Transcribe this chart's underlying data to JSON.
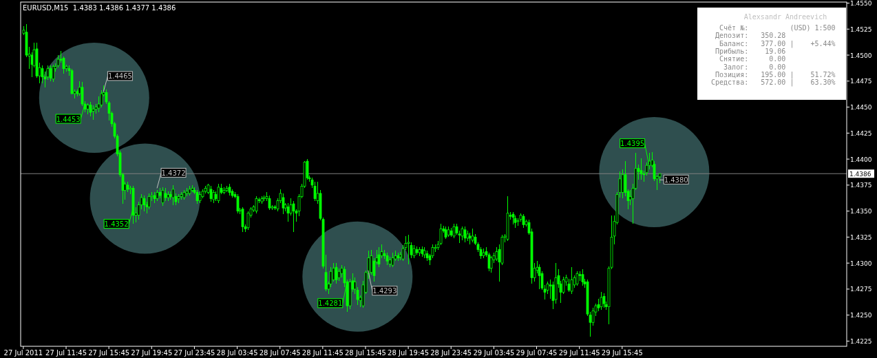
{
  "chart_data": [
    {
      "type": "candlestick",
      "title": "EURUSD,M15  1.4383 1.4386 1.4377 1.4386",
      "color": "#00ff00",
      "xlim": [
        "2011-07-27T07:30",
        "2011-07-30T12:45"
      ],
      "ylim": [
        1.422,
        1.4551
      ],
      "yticks": [
        {
          "value": 1.4225,
          "label": "1.4225"
        },
        {
          "value": 1.425,
          "label": "1.4250"
        },
        {
          "value": 1.4275,
          "label": "1.4275"
        },
        {
          "value": 1.43,
          "label": "1.4300"
        },
        {
          "value": 1.4325,
          "label": "1.4325"
        },
        {
          "value": 1.435,
          "label": "1.4350"
        },
        {
          "value": 1.4375,
          "label": "1.4375"
        },
        {
          "value": 1.44,
          "label": "1.4400"
        },
        {
          "value": 1.4425,
          "label": "1.4425"
        },
        {
          "value": 1.445,
          "label": "1.4450"
        },
        {
          "value": 1.4475,
          "label": "1.4475"
        },
        {
          "value": 1.45,
          "label": "1.4500"
        },
        {
          "value": 1.4525,
          "label": "1.4525"
        },
        {
          "value": 1.455,
          "label": "1.4550"
        }
      ],
      "xticks": [
        {
          "value": "2011-07-27T07:45",
          "label": "27 Jul 2011"
        },
        {
          "value": "2011-07-27T11:45",
          "label": "27 Jul 11:45"
        },
        {
          "value": "2011-07-27T15:45",
          "label": "27 Jul 15:45"
        },
        {
          "value": "2011-07-27T19:45",
          "label": "27 Jul 19:45"
        },
        {
          "value": "2011-07-27T23:45",
          "label": "27 Jul 23:45"
        },
        {
          "value": "2011-07-28T03:45",
          "label": "28 Jul 03:45"
        },
        {
          "value": "2011-07-28T07:45",
          "label": "28 Jul 07:45"
        },
        {
          "value": "2011-07-28T11:45",
          "label": "28 Jul 11:45"
        },
        {
          "value": "2011-07-28T15:45",
          "label": "28 Jul 15:45"
        },
        {
          "value": "2011-07-28T19:45",
          "label": "28 Jul 19:45"
        },
        {
          "value": "2011-07-28T23:45",
          "label": "28 Jul 23:45"
        },
        {
          "value": "2011-07-29T03:45",
          "label": "29 Jul 03:45"
        },
        {
          "value": "2011-07-29T07:45",
          "label": "29 Jul 07:45"
        },
        {
          "value": "2011-07-29T11:45",
          "label": "29 Jul 11:45"
        },
        {
          "value": "2011-07-29T15:45",
          "label": "29 Jul 15:45"
        }
      ],
      "ref_lines": [
        {
          "axis": "y",
          "value": 1.4386,
          "label": "1.4386",
          "color": "#808080"
        }
      ],
      "annotations": [
        {
          "text": "1.4453",
          "x": "2011-07-27T13:30",
          "y": 1.4453
        },
        {
          "text": "1.4465",
          "x": "2011-07-27T15:15",
          "y": 1.4465
        },
        {
          "text": "1.4352",
          "x": "2011-07-27T18:00",
          "y": 1.4352
        },
        {
          "text": "1.4372",
          "x": "2011-07-27T20:15",
          "y": 1.4372
        },
        {
          "text": "1.4281",
          "x": "2011-07-28T14:00",
          "y": 1.4281
        },
        {
          "text": "1.4293",
          "x": "2011-07-28T16:00",
          "y": 1.4293
        },
        {
          "text": "1.4395",
          "x": "2011-07-29T18:15",
          "y": 1.4395
        },
        {
          "text": "1.4380",
          "x": "2011-07-29T19:15",
          "y": 1.438
        }
      ],
      "x": [
        "2011-07-27T07:45",
        "2011-07-27T08:00",
        "2011-07-27T08:15",
        "2011-07-27T08:30",
        "2011-07-27T08:45",
        "2011-07-27T09:00",
        "2011-07-27T09:15",
        "2011-07-27T09:30",
        "2011-07-27T09:45",
        "2011-07-27T10:00",
        "2011-07-27T10:15",
        "2011-07-27T10:30",
        "2011-07-27T10:45",
        "2011-07-27T11:00",
        "2011-07-27T11:15",
        "2011-07-27T11:30",
        "2011-07-27T11:45",
        "2011-07-27T12:00",
        "2011-07-27T12:15",
        "2011-07-27T12:30",
        "2011-07-27T12:45",
        "2011-07-27T13:00",
        "2011-07-27T13:15",
        "2011-07-27T13:30",
        "2011-07-27T13:45",
        "2011-07-27T14:00",
        "2011-07-27T14:15",
        "2011-07-27T14:30",
        "2011-07-27T14:45",
        "2011-07-27T15:00",
        "2011-07-27T15:15",
        "2011-07-27T15:30",
        "2011-07-27T15:45",
        "2011-07-27T16:00",
        "2011-07-27T16:15",
        "2011-07-27T16:30",
        "2011-07-27T16:45",
        "2011-07-27T17:00",
        "2011-07-27T17:15",
        "2011-07-27T17:30",
        "2011-07-27T17:45",
        "2011-07-27T18:00",
        "2011-07-27T18:15",
        "2011-07-27T18:30",
        "2011-07-27T18:45",
        "2011-07-27T19:00",
        "2011-07-27T19:15",
        "2011-07-27T19:30",
        "2011-07-27T19:45",
        "2011-07-27T20:00",
        "2011-07-27T20:15",
        "2011-07-27T20:30",
        "2011-07-27T20:45",
        "2011-07-27T21:00",
        "2011-07-27T21:15",
        "2011-07-27T21:30",
        "2011-07-27T21:45",
        "2011-07-27T22:00",
        "2011-07-27T22:15",
        "2011-07-27T22:30",
        "2011-07-27T22:45",
        "2011-07-27T23:00",
        "2011-07-27T23:15",
        "2011-07-27T23:30",
        "2011-07-27T23:45",
        "2011-07-28T00:00",
        "2011-07-28T00:15",
        "2011-07-28T00:30",
        "2011-07-28T00:45",
        "2011-07-28T01:00",
        "2011-07-28T01:15",
        "2011-07-28T01:30",
        "2011-07-28T01:45",
        "2011-07-28T02:00",
        "2011-07-28T02:15",
        "2011-07-28T02:30",
        "2011-07-28T02:45",
        "2011-07-28T03:00",
        "2011-07-28T03:15",
        "2011-07-28T03:30",
        "2011-07-28T03:45",
        "2011-07-28T04:00",
        "2011-07-28T04:15",
        "2011-07-28T04:30",
        "2011-07-28T04:45",
        "2011-07-28T05:00",
        "2011-07-28T05:15",
        "2011-07-28T05:30",
        "2011-07-28T05:45",
        "2011-07-28T06:00",
        "2011-07-28T06:15",
        "2011-07-28T06:30",
        "2011-07-28T06:45",
        "2011-07-28T07:00",
        "2011-07-28T07:15",
        "2011-07-28T07:30",
        "2011-07-28T07:45",
        "2011-07-28T08:00",
        "2011-07-28T08:15",
        "2011-07-28T08:30",
        "2011-07-28T08:45",
        "2011-07-28T09:00",
        "2011-07-28T09:15",
        "2011-07-28T09:30",
        "2011-07-28T09:45",
        "2011-07-28T10:00",
        "2011-07-28T10:15",
        "2011-07-28T10:30",
        "2011-07-28T10:45",
        "2011-07-28T11:00",
        "2011-07-28T11:15",
        "2011-07-28T11:30",
        "2011-07-28T11:45",
        "2011-07-28T12:00",
        "2011-07-28T12:15",
        "2011-07-28T12:30",
        "2011-07-28T12:45",
        "2011-07-28T13:00",
        "2011-07-28T13:15",
        "2011-07-28T13:30",
        "2011-07-28T13:45",
        "2011-07-28T14:00",
        "2011-07-28T14:15",
        "2011-07-28T14:30",
        "2011-07-28T14:45",
        "2011-07-28T15:00",
        "2011-07-28T15:15",
        "2011-07-28T15:30",
        "2011-07-28T15:45",
        "2011-07-28T16:00",
        "2011-07-28T16:15",
        "2011-07-28T16:30",
        "2011-07-28T16:45",
        "2011-07-28T17:00",
        "2011-07-28T17:15",
        "2011-07-28T17:30",
        "2011-07-28T17:45",
        "2011-07-28T18:00",
        "2011-07-28T18:15",
        "2011-07-28T18:30",
        "2011-07-28T18:45",
        "2011-07-28T19:00",
        "2011-07-28T19:15",
        "2011-07-28T19:30",
        "2011-07-28T19:45",
        "2011-07-28T20:00",
        "2011-07-28T20:15",
        "2011-07-28T20:30",
        "2011-07-28T20:45",
        "2011-07-28T21:00",
        "2011-07-28T21:15",
        "2011-07-28T21:30",
        "2011-07-28T21:45",
        "2011-07-28T22:00",
        "2011-07-28T22:15",
        "2011-07-28T22:30",
        "2011-07-28T22:45",
        "2011-07-28T23:00",
        "2011-07-28T23:15",
        "2011-07-28T23:30",
        "2011-07-28T23:45",
        "2011-07-29T00:00",
        "2011-07-29T00:15",
        "2011-07-29T00:30",
        "2011-07-29T00:45",
        "2011-07-29T01:00",
        "2011-07-29T01:15",
        "2011-07-29T01:30",
        "2011-07-29T01:45",
        "2011-07-29T02:00",
        "2011-07-29T02:15",
        "2011-07-29T02:30",
        "2011-07-29T02:45",
        "2011-07-29T03:00",
        "2011-07-29T03:15",
        "2011-07-29T03:30",
        "2011-07-29T03:45",
        "2011-07-29T04:00",
        "2011-07-29T04:15",
        "2011-07-29T04:30",
        "2011-07-29T04:45",
        "2011-07-29T05:00",
        "2011-07-29T05:15",
        "2011-07-29T05:30",
        "2011-07-29T05:45",
        "2011-07-29T06:00",
        "2011-07-29T06:15",
        "2011-07-29T06:30",
        "2011-07-29T06:45",
        "2011-07-29T07:00",
        "2011-07-29T07:15",
        "2011-07-29T07:30",
        "2011-07-29T07:45",
        "2011-07-29T08:00",
        "2011-07-29T08:15",
        "2011-07-29T08:30",
        "2011-07-29T08:45",
        "2011-07-29T09:00",
        "2011-07-29T09:15",
        "2011-07-29T09:30",
        "2011-07-29T09:45",
        "2011-07-29T10:00",
        "2011-07-29T10:15",
        "2011-07-29T10:30",
        "2011-07-29T10:45",
        "2011-07-29T11:00",
        "2011-07-29T11:15",
        "2011-07-29T11:30",
        "2011-07-29T11:45",
        "2011-07-29T12:00",
        "2011-07-29T12:15",
        "2011-07-29T12:30",
        "2011-07-29T12:45",
        "2011-07-29T13:00",
        "2011-07-29T13:15",
        "2011-07-29T13:30",
        "2011-07-29T13:45",
        "2011-07-29T14:00",
        "2011-07-29T14:15",
        "2011-07-29T14:30",
        "2011-07-29T14:45",
        "2011-07-29T15:00",
        "2011-07-29T15:15",
        "2011-07-29T15:30",
        "2011-07-29T15:45",
        "2011-07-29T16:00",
        "2011-07-29T16:15",
        "2011-07-29T16:30",
        "2011-07-29T16:45",
        "2011-07-29T17:00",
        "2011-07-29T17:15",
        "2011-07-29T17:30",
        "2011-07-29T17:45",
        "2011-07-29T18:00",
        "2011-07-29T18:15",
        "2011-07-29T18:30",
        "2011-07-29T18:45",
        "2011-07-29T19:00",
        "2011-07-29T19:15"
      ],
      "ohlc": [
        [
          1.4521,
          1.4528,
          1.4519,
          1.4524
        ],
        [
          1.4522,
          1.453,
          1.4498,
          1.45
        ],
        [
          1.4499,
          1.4508,
          1.4487,
          1.4501
        ],
        [
          1.45,
          1.4503,
          1.4479,
          1.4491
        ],
        [
          1.449,
          1.4512,
          1.4488,
          1.4505
        ],
        [
          1.4506,
          1.4512,
          1.4478,
          1.448
        ],
        [
          1.448,
          1.4493,
          1.4473,
          1.4488
        ],
        [
          1.4487,
          1.449,
          1.4473,
          1.4479
        ],
        [
          1.4479,
          1.4484,
          1.4469,
          1.4477
        ],
        [
          1.4479,
          1.449,
          1.4476,
          1.4487
        ],
        [
          1.4487,
          1.449,
          1.4475,
          1.4478
        ],
        [
          1.4477,
          1.4491,
          1.4474,
          1.4489
        ],
        [
          1.4487,
          1.4492,
          1.4484,
          1.4489
        ],
        [
          1.449,
          1.45,
          1.4488,
          1.4496
        ],
        [
          1.4496,
          1.4504,
          1.4493,
          1.4495
        ],
        [
          1.4497,
          1.4499,
          1.4482,
          1.4487
        ],
        [
          1.4487,
          1.4491,
          1.4484,
          1.4489
        ],
        [
          1.4487,
          1.449,
          1.448,
          1.4485
        ],
        [
          1.4485,
          1.4487,
          1.4462,
          1.4463
        ],
        [
          1.4463,
          1.4467,
          1.4458,
          1.4465
        ],
        [
          1.4465,
          1.4467,
          1.446,
          1.4463
        ],
        [
          1.4463,
          1.4475,
          1.4461,
          1.4469
        ],
        [
          1.4469,
          1.4474,
          1.4451,
          1.4453
        ],
        [
          1.4453,
          1.4456,
          1.4445,
          1.4448
        ],
        [
          1.4448,
          1.4454,
          1.4443,
          1.4452
        ],
        [
          1.4452,
          1.4455,
          1.4441,
          1.4445
        ],
        [
          1.4446,
          1.4452,
          1.4438,
          1.4448
        ],
        [
          1.4448,
          1.4453,
          1.4444,
          1.445
        ],
        [
          1.4449,
          1.446,
          1.4445,
          1.4453
        ],
        [
          1.4452,
          1.4466,
          1.445,
          1.4463
        ],
        [
          1.4462,
          1.4471,
          1.446,
          1.4464
        ],
        [
          1.4464,
          1.4467,
          1.4453,
          1.4455
        ],
        [
          1.4454,
          1.4456,
          1.4437,
          1.4444
        ],
        [
          1.4444,
          1.4446,
          1.4431,
          1.4434
        ],
        [
          1.4434,
          1.4436,
          1.442,
          1.4422
        ],
        [
          1.4422,
          1.4424,
          1.4403,
          1.4405
        ],
        [
          1.4406,
          1.4408,
          1.4383,
          1.4385
        ],
        [
          1.4385,
          1.4387,
          1.4357,
          1.437
        ],
        [
          1.437,
          1.4378,
          1.4361,
          1.4376
        ],
        [
          1.4375,
          1.4378,
          1.4368,
          1.4371
        ],
        [
          1.4371,
          1.4374,
          1.4366,
          1.4372
        ],
        [
          1.4372,
          1.4374,
          1.4338,
          1.4346
        ],
        [
          1.4346,
          1.4354,
          1.4339,
          1.4348
        ],
        [
          1.4346,
          1.4359,
          1.4342,
          1.4356
        ],
        [
          1.4356,
          1.4366,
          1.4352,
          1.4363
        ],
        [
          1.4362,
          1.4365,
          1.435,
          1.4356
        ],
        [
          1.4356,
          1.4359,
          1.4348,
          1.4354
        ],
        [
          1.4354,
          1.4367,
          1.4352,
          1.4364
        ],
        [
          1.4364,
          1.4368,
          1.436,
          1.4365
        ],
        [
          1.4365,
          1.4368,
          1.4358,
          1.4362
        ],
        [
          1.4362,
          1.437,
          1.436,
          1.4368
        ],
        [
          1.4368,
          1.4372,
          1.4362,
          1.4365
        ],
        [
          1.4358,
          1.4373,
          1.4355,
          1.437
        ],
        [
          1.4367,
          1.4372,
          1.436,
          1.4363
        ],
        [
          1.4363,
          1.4369,
          1.436,
          1.4366
        ],
        [
          1.4366,
          1.4369,
          1.4361,
          1.4364
        ],
        [
          1.4363,
          1.4375,
          1.4356,
          1.4371
        ],
        [
          1.4364,
          1.4367,
          1.4356,
          1.4359
        ],
        [
          1.4362,
          1.4366,
          1.4358,
          1.4364
        ],
        [
          1.4364,
          1.4368,
          1.4361,
          1.4366
        ],
        [
          1.4363,
          1.437,
          1.4361,
          1.4368
        ],
        [
          1.4367,
          1.4372,
          1.4364,
          1.4369
        ],
        [
          1.4367,
          1.4374,
          1.4365,
          1.4371
        ],
        [
          1.437,
          1.4375,
          1.4368,
          1.4372
        ],
        [
          1.437,
          1.4373,
          1.4366,
          1.4368
        ],
        [
          1.4368,
          1.437,
          1.4357,
          1.436
        ],
        [
          1.436,
          1.4369,
          1.4358,
          1.4366
        ],
        [
          1.4364,
          1.4371,
          1.4362,
          1.4369
        ],
        [
          1.4369,
          1.4374,
          1.4367,
          1.4372
        ],
        [
          1.4368,
          1.4376,
          1.4366,
          1.4375
        ],
        [
          1.4371,
          1.4374,
          1.4359,
          1.4362
        ],
        [
          1.4361,
          1.437,
          1.4358,
          1.4368
        ],
        [
          1.4366,
          1.4369,
          1.436,
          1.4362
        ],
        [
          1.436,
          1.4376,
          1.4358,
          1.4373
        ],
        [
          1.4372,
          1.4376,
          1.4366,
          1.4368
        ],
        [
          1.4368,
          1.4373,
          1.4366,
          1.437
        ],
        [
          1.437,
          1.4374,
          1.4368,
          1.4372
        ],
        [
          1.4373,
          1.4376,
          1.4365,
          1.4368
        ],
        [
          1.4369,
          1.4371,
          1.4363,
          1.4365
        ],
        [
          1.4366,
          1.4368,
          1.4362,
          1.4364
        ],
        [
          1.4364,
          1.4366,
          1.4348,
          1.435
        ],
        [
          1.435,
          1.4353,
          1.4347,
          1.4351
        ],
        [
          1.4352,
          1.4354,
          1.433,
          1.4335
        ],
        [
          1.4335,
          1.4337,
          1.433,
          1.4333
        ],
        [
          1.4334,
          1.435,
          1.4332,
          1.4348
        ],
        [
          1.4346,
          1.4354,
          1.4344,
          1.4352
        ],
        [
          1.4351,
          1.4356,
          1.4349,
          1.4354
        ],
        [
          1.435,
          1.4364,
          1.4348,
          1.4362
        ],
        [
          1.4361,
          1.4363,
          1.4358,
          1.436
        ],
        [
          1.4359,
          1.4364,
          1.4357,
          1.4362
        ],
        [
          1.4362,
          1.4365,
          1.436,
          1.4363
        ],
        [
          1.4362,
          1.4368,
          1.436,
          1.4364
        ],
        [
          1.4362,
          1.4365,
          1.4351,
          1.4353
        ],
        [
          1.4353,
          1.4356,
          1.4351,
          1.4354
        ],
        [
          1.4354,
          1.4356,
          1.4351,
          1.4353
        ],
        [
          1.4352,
          1.4362,
          1.435,
          1.436
        ],
        [
          1.436,
          1.4371,
          1.4358,
          1.4367
        ],
        [
          1.4363,
          1.4367,
          1.4347,
          1.4353
        ],
        [
          1.4353,
          1.4358,
          1.435,
          1.4356
        ],
        [
          1.4354,
          1.4358,
          1.434,
          1.4348
        ],
        [
          1.4348,
          1.4362,
          1.4346,
          1.4356
        ],
        [
          1.4357,
          1.436,
          1.433,
          1.435
        ],
        [
          1.435,
          1.4352,
          1.434,
          1.4348
        ],
        [
          1.435,
          1.4366,
          1.4345,
          1.4364
        ],
        [
          1.4364,
          1.4376,
          1.4362,
          1.4374
        ],
        [
          1.4374,
          1.4398,
          1.4372,
          1.4397
        ],
        [
          1.4398,
          1.44,
          1.438,
          1.4382
        ],
        [
          1.4382,
          1.4384,
          1.4378,
          1.4381
        ],
        [
          1.438,
          1.4382,
          1.4372,
          1.4375
        ],
        [
          1.4374,
          1.4378,
          1.436,
          1.4362
        ],
        [
          1.436,
          1.4378,
          1.4357,
          1.4367
        ],
        [
          1.4367,
          1.437,
          1.4341,
          1.4343
        ],
        [
          1.4342,
          1.4344,
          1.4295,
          1.4297
        ],
        [
          1.4291,
          1.4308,
          1.4273,
          1.4275
        ],
        [
          1.4275,
          1.4282,
          1.427,
          1.428
        ],
        [
          1.428,
          1.4296,
          1.4277,
          1.4292
        ],
        [
          1.4284,
          1.43,
          1.4282,
          1.4295
        ],
        [
          1.4296,
          1.43,
          1.428,
          1.4284
        ],
        [
          1.4286,
          1.4295,
          1.4283,
          1.4292
        ],
        [
          1.429,
          1.4298,
          1.4286,
          1.4295
        ],
        [
          1.4294,
          1.4297,
          1.4277,
          1.4281
        ],
        [
          1.4282,
          1.4284,
          1.4253,
          1.4259
        ],
        [
          1.4259,
          1.4285,
          1.4256,
          1.4282
        ],
        [
          1.4283,
          1.429,
          1.4272,
          1.4275
        ],
        [
          1.4275,
          1.4286,
          1.427,
          1.4282
        ],
        [
          1.4274,
          1.4277,
          1.426,
          1.4265
        ],
        [
          1.4264,
          1.4269,
          1.4258,
          1.4267
        ],
        [
          1.4259,
          1.4283,
          1.4257,
          1.4279
        ],
        [
          1.4272,
          1.4293,
          1.427,
          1.4291
        ],
        [
          1.429,
          1.4312,
          1.4285,
          1.4305
        ],
        [
          1.4291,
          1.4313,
          1.4289,
          1.4307
        ],
        [
          1.4302,
          1.4305,
          1.4282,
          1.4288
        ],
        [
          1.4301,
          1.4313,
          1.4299,
          1.4305
        ],
        [
          1.4308,
          1.4315,
          1.4296,
          1.4299
        ],
        [
          1.4307,
          1.4318,
          1.4305,
          1.4311
        ],
        [
          1.4309,
          1.4313,
          1.4304,
          1.4307
        ],
        [
          1.4307,
          1.431,
          1.4298,
          1.4302
        ],
        [
          1.4299,
          1.4306,
          1.4296,
          1.4303
        ],
        [
          1.4298,
          1.431,
          1.4296,
          1.4305
        ],
        [
          1.4304,
          1.4312,
          1.4302,
          1.4307
        ],
        [
          1.4307,
          1.431,
          1.4302,
          1.4305
        ],
        [
          1.4306,
          1.4311,
          1.4303,
          1.4308
        ],
        [
          1.4304,
          1.4317,
          1.4302,
          1.4314
        ],
        [
          1.4315,
          1.4326,
          1.4313,
          1.4319
        ],
        [
          1.4319,
          1.4327,
          1.4299,
          1.432
        ],
        [
          1.4317,
          1.432,
          1.4305,
          1.4308
        ],
        [
          1.4307,
          1.4317,
          1.4305,
          1.4314
        ],
        [
          1.4313,
          1.4316,
          1.4308,
          1.431
        ],
        [
          1.431,
          1.4315,
          1.4307,
          1.4313
        ],
        [
          1.4313,
          1.4316,
          1.4306,
          1.4309
        ],
        [
          1.4308,
          1.4315,
          1.4305,
          1.4312
        ],
        [
          1.4309,
          1.4312,
          1.4302,
          1.4305
        ],
        [
          1.4307,
          1.4309,
          1.4298,
          1.4303
        ],
        [
          1.4307,
          1.4318,
          1.4305,
          1.4315
        ],
        [
          1.4314,
          1.4318,
          1.4311,
          1.4315
        ],
        [
          1.4315,
          1.4321,
          1.4313,
          1.4318
        ],
        [
          1.4319,
          1.4338,
          1.4317,
          1.4333
        ],
        [
          1.4333,
          1.4336,
          1.4329,
          1.4331
        ],
        [
          1.4332,
          1.4335,
          1.4323,
          1.4325
        ],
        [
          1.4327,
          1.4335,
          1.4325,
          1.4332
        ],
        [
          1.4331,
          1.4334,
          1.4325,
          1.4327
        ],
        [
          1.4326,
          1.4338,
          1.4324,
          1.4335
        ],
        [
          1.4335,
          1.4338,
          1.4327,
          1.4329
        ],
        [
          1.4328,
          1.4331,
          1.4319,
          1.4327
        ],
        [
          1.4326,
          1.4335,
          1.4322,
          1.4333
        ],
        [
          1.4332,
          1.4335,
          1.432,
          1.4324
        ],
        [
          1.4324,
          1.4331,
          1.4321,
          1.4328
        ],
        [
          1.4326,
          1.4329,
          1.4318,
          1.4324
        ],
        [
          1.4322,
          1.4333,
          1.432,
          1.4326
        ],
        [
          1.4325,
          1.4328,
          1.4317,
          1.4319
        ],
        [
          1.4318,
          1.432,
          1.4311,
          1.4313
        ],
        [
          1.4313,
          1.4315,
          1.4304,
          1.4307
        ],
        [
          1.4307,
          1.4314,
          1.4305,
          1.431
        ],
        [
          1.4311,
          1.4315,
          1.4306,
          1.4308
        ],
        [
          1.4308,
          1.431,
          1.4292,
          1.4295
        ],
        [
          1.4295,
          1.4307,
          1.4291,
          1.4305
        ],
        [
          1.4303,
          1.431,
          1.43,
          1.4307
        ],
        [
          1.4304,
          1.4315,
          1.4302,
          1.4311
        ],
        [
          1.4313,
          1.4318,
          1.4282,
          1.4301
        ],
        [
          1.43,
          1.4327,
          1.4298,
          1.4325
        ],
        [
          1.4325,
          1.4328,
          1.432,
          1.4326
        ],
        [
          1.4323,
          1.4364,
          1.4321,
          1.4348
        ],
        [
          1.4346,
          1.4349,
          1.4342,
          1.4345
        ],
        [
          1.4347,
          1.4349,
          1.4337,
          1.4344
        ],
        [
          1.4343,
          1.4346,
          1.4334,
          1.4339
        ],
        [
          1.434,
          1.4343,
          1.4336,
          1.4341
        ],
        [
          1.4342,
          1.4348,
          1.434,
          1.4346
        ],
        [
          1.4345,
          1.4347,
          1.4334,
          1.4337
        ],
        [
          1.4337,
          1.4342,
          1.4335,
          1.434
        ],
        [
          1.4339,
          1.4342,
          1.4327,
          1.4329
        ],
        [
          1.433,
          1.4333,
          1.428,
          1.4286
        ],
        [
          1.4286,
          1.43,
          1.4282,
          1.4295
        ],
        [
          1.4293,
          1.4302,
          1.429,
          1.4296
        ],
        [
          1.4296,
          1.4299,
          1.4275,
          1.4288
        ],
        [
          1.429,
          1.4292,
          1.4274,
          1.4276
        ],
        [
          1.4275,
          1.4279,
          1.4265,
          1.4272
        ],
        [
          1.4274,
          1.4282,
          1.427,
          1.428
        ],
        [
          1.4279,
          1.4284,
          1.4266,
          1.4278
        ],
        [
          1.4279,
          1.4282,
          1.4256,
          1.4264
        ],
        [
          1.4265,
          1.43,
          1.4261,
          1.4286
        ],
        [
          1.4288,
          1.4294,
          1.4276,
          1.428
        ],
        [
          1.428,
          1.4283,
          1.4262,
          1.4272
        ],
        [
          1.4272,
          1.4287,
          1.427,
          1.4284
        ],
        [
          1.4282,
          1.4289,
          1.4278,
          1.4286
        ],
        [
          1.428,
          1.4285,
          1.4272,
          1.4274
        ],
        [
          1.4273,
          1.4296,
          1.427,
          1.4284
        ],
        [
          1.4279,
          1.4288,
          1.4276,
          1.4286
        ],
        [
          1.428,
          1.4292,
          1.4278,
          1.429
        ],
        [
          1.4289,
          1.4292,
          1.4283,
          1.4288
        ],
        [
          1.4289,
          1.4294,
          1.4278,
          1.4282
        ],
        [
          1.4282,
          1.4285,
          1.4276,
          1.428
        ],
        [
          1.4282,
          1.4284,
          1.4249,
          1.4251
        ],
        [
          1.425,
          1.4253,
          1.4229,
          1.4243
        ],
        [
          1.4243,
          1.4257,
          1.424,
          1.4254
        ],
        [
          1.4253,
          1.4261,
          1.4249,
          1.4259
        ],
        [
          1.426,
          1.4266,
          1.4254,
          1.4257
        ],
        [
          1.4258,
          1.4272,
          1.4255,
          1.4267
        ],
        [
          1.4268,
          1.4271,
          1.4257,
          1.4261
        ],
        [
          1.426,
          1.4263,
          1.4255,
          1.4258
        ],
        [
          1.4258,
          1.4297,
          1.4241,
          1.4295
        ],
        [
          1.4296,
          1.4346,
          1.4294,
          1.4325
        ],
        [
          1.4326,
          1.4346,
          1.4318,
          1.434
        ],
        [
          1.4339,
          1.4368,
          1.4337,
          1.4366
        ],
        [
          1.4368,
          1.4388,
          1.4363,
          1.4381
        ],
        [
          1.4368,
          1.439,
          1.4362,
          1.4385
        ],
        [
          1.4385,
          1.4398,
          1.4364,
          1.4368
        ],
        [
          1.4369,
          1.4371,
          1.4352,
          1.436
        ],
        [
          1.4361,
          1.437,
          1.4356,
          1.4364
        ],
        [
          1.4362,
          1.4376,
          1.4338,
          1.4372
        ],
        [
          1.4372,
          1.4406,
          1.437,
          1.4391
        ],
        [
          1.4391,
          1.4395,
          1.438,
          1.4388
        ],
        [
          1.4389,
          1.4401,
          1.438,
          1.4386
        ],
        [
          1.4386,
          1.4389,
          1.4378,
          1.4385
        ],
        [
          1.4387,
          1.4397,
          1.4384,
          1.4394
        ],
        [
          1.4394,
          1.4406,
          1.439,
          1.4398
        ],
        [
          1.4394,
          1.4407,
          1.4392,
          1.4399
        ],
        [
          1.4395,
          1.4398,
          1.4379,
          1.4381
        ],
        [
          1.4381,
          1.4385,
          1.437,
          1.4383
        ],
        [
          1.4383,
          1.4386,
          1.4377,
          1.4386
        ]
      ]
    },
    {
      "type": "other",
      "title": "Alexsandr Andreevich",
      "annotations": [
        "   Счёт №:          (USD) 1:500",
        "  Депозит:   350.28",
        "   Баланс:   377.00 |    +5.44%",
        "  Прибыль:    19.06",
        "   Снятие:     0.00",
        "    Залог:     0.00",
        "  Позиция:   195.00 |    51.72%",
        " Средства:   572.00 |    63.30%"
      ]
    }
  ]
}
